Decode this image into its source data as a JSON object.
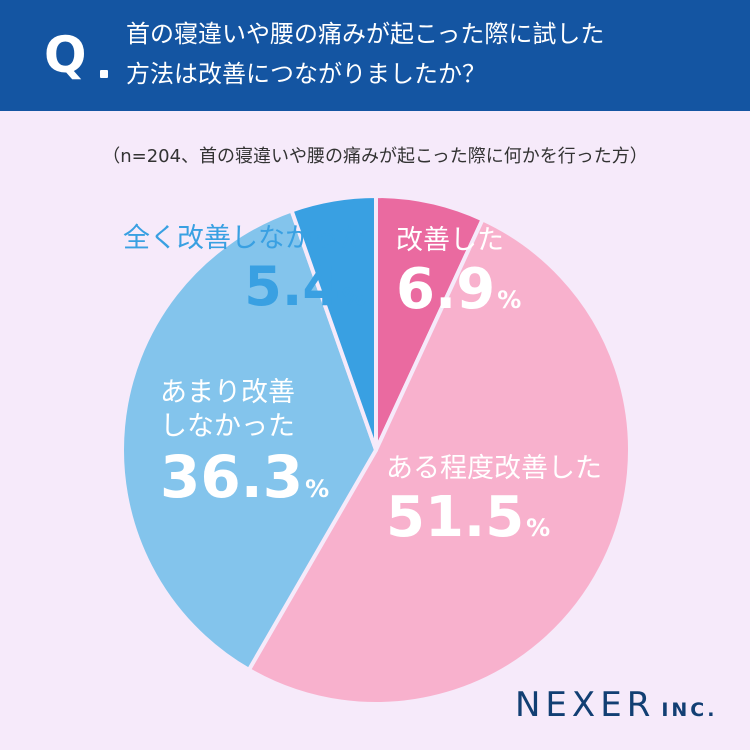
{
  "header": {
    "q_mark": "Q",
    "question_line1": "首の寝違いや腰の痛みが起こった際に試した",
    "question_line2": "方法は改善につながりましたか？"
  },
  "note": "（n=204、首の寝違いや腰の痛みが起こった際に何かを行った方）",
  "logo": {
    "main": "NEXER",
    "sub": "INC."
  },
  "chart_data": {
    "type": "pie",
    "title": "首の寝違いや腰の痛みが起こった際に試した方法は改善につながりましたか？",
    "start_angle_deg": 0,
    "direction": "clockwise",
    "slices": [
      {
        "label": "改善した",
        "value": 6.9,
        "value_text": "6.9",
        "unit": "%",
        "color": "#ea6aa0",
        "text_color": "#ffffff"
      },
      {
        "label": "ある程度改善した",
        "value": 51.5,
        "value_text": "51.5",
        "unit": "%",
        "color": "#f8b1cd",
        "text_color": "#ffffff"
      },
      {
        "label": "あまり改善しなかった",
        "value": 36.3,
        "value_text": "36.3",
        "unit": "%",
        "color": "#83c4ec",
        "text_color": "#ffffff"
      },
      {
        "label": "全く改善しなかった",
        "value": 5.4,
        "value_text": "5.4",
        "unit": "%",
        "color": "#39a0e2",
        "text_color": "#39a0e2"
      }
    ]
  }
}
